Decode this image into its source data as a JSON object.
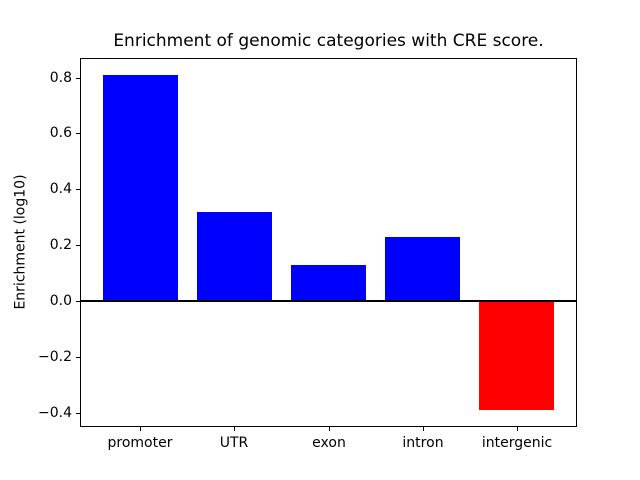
{
  "chart_data": {
    "type": "bar",
    "title": "Enrichment of genomic categories with CRE score.",
    "ylabel": "Enrichment (log10)",
    "categories": [
      "promoter",
      "UTR",
      "exon",
      "intron",
      "intergenic"
    ],
    "values": [
      0.81,
      0.32,
      0.13,
      0.23,
      -0.39
    ],
    "bar_colors": [
      "#0000ff",
      "#0000ff",
      "#0000ff",
      "#0000ff",
      "#ff0000"
    ],
    "positive_color": "#0000ff",
    "negative_color": "#ff0000",
    "ylim": [
      -0.45,
      0.87
    ],
    "yticks": [
      0.8,
      0.6,
      0.4,
      0.2,
      0.0,
      -0.2,
      -0.4
    ],
    "ytick_labels": [
      "0.8",
      "0.6",
      "0.4",
      "0.2",
      "0.0",
      "−0.2",
      "−0.4"
    ],
    "zero_line": true,
    "grid": false,
    "legend_position": "none",
    "axis_color": "#000000",
    "background_color": "#ffffff"
  }
}
